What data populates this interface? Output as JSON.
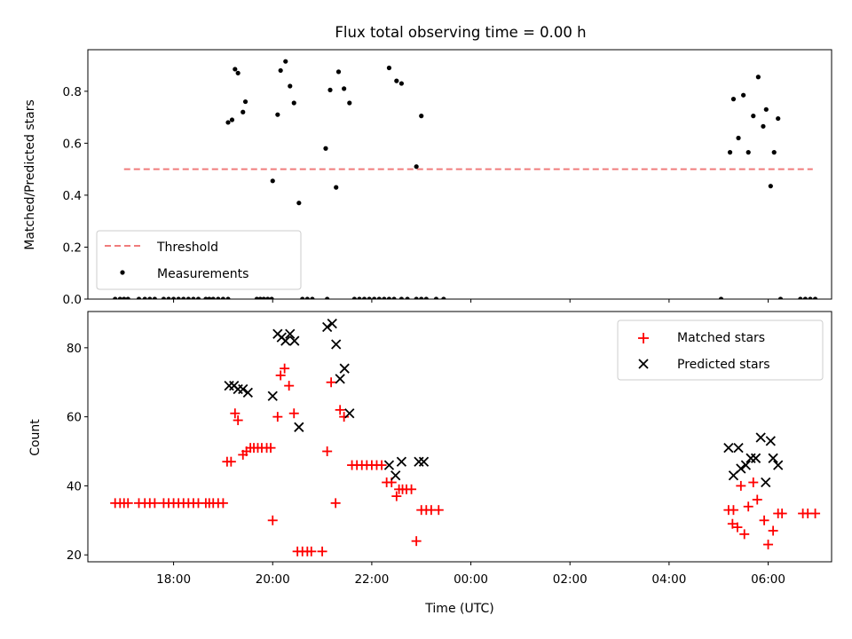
{
  "title": "Flux total observing time = 0.00 h",
  "chart_data": [
    {
      "type": "scatter",
      "ylabel": "Matched/Predicted stars",
      "xlabel": "",
      "xlim": [
        16.27,
        31.28
      ],
      "ylim": [
        0,
        0.96
      ],
      "yticks": [
        0.0,
        0.2,
        0.4,
        0.6,
        0.8
      ],
      "ytick_labels": [
        "0.0",
        "0.2",
        "0.4",
        "0.6",
        "0.8"
      ],
      "xticks": [
        18,
        20,
        22,
        24,
        26,
        28,
        30
      ],
      "legend_position": "lower-left",
      "threshold": {
        "name": "Threshold",
        "value": 0.5,
        "x_range": [
          17.0,
          30.9
        ],
        "color": "#f07c7c"
      },
      "series": [
        {
          "name": "Measurements",
          "color": "#000000",
          "points": [
            [
              19.1,
              0.68
            ],
            [
              19.18,
              0.69
            ],
            [
              19.24,
              0.885
            ],
            [
              19.3,
              0.87
            ],
            [
              19.4,
              0.72
            ],
            [
              19.45,
              0.76
            ],
            [
              20.0,
              0.455
            ],
            [
              20.1,
              0.71
            ],
            [
              20.16,
              0.88
            ],
            [
              20.26,
              0.915
            ],
            [
              20.35,
              0.82
            ],
            [
              20.43,
              0.755
            ],
            [
              20.53,
              0.37
            ],
            [
              21.07,
              0.58
            ],
            [
              21.16,
              0.805
            ],
            [
              21.28,
              0.43
            ],
            [
              21.33,
              0.875
            ],
            [
              21.44,
              0.81
            ],
            [
              21.55,
              0.755
            ],
            [
              22.35,
              0.89
            ],
            [
              22.5,
              0.84
            ],
            [
              22.6,
              0.83
            ],
            [
              22.9,
              0.51
            ],
            [
              23.0,
              0.705
            ],
            [
              29.23,
              0.565
            ],
            [
              29.3,
              0.77
            ],
            [
              29.4,
              0.62
            ],
            [
              29.5,
              0.785
            ],
            [
              29.6,
              0.565
            ],
            [
              29.7,
              0.705
            ],
            [
              29.8,
              0.855
            ],
            [
              29.9,
              0.665
            ],
            [
              29.96,
              0.73
            ],
            [
              30.05,
              0.435
            ],
            [
              30.12,
              0.565
            ],
            [
              30.2,
              0.695
            ],
            [
              16.82,
              0.0
            ],
            [
              16.92,
              0.0
            ],
            [
              17.0,
              0.0
            ],
            [
              17.08,
              0.0
            ],
            [
              17.3,
              0.0
            ],
            [
              17.42,
              0.0
            ],
            [
              17.52,
              0.0
            ],
            [
              17.62,
              0.0
            ],
            [
              17.8,
              0.0
            ],
            [
              17.9,
              0.0
            ],
            [
              18.0,
              0.0
            ],
            [
              18.1,
              0.0
            ],
            [
              18.2,
              0.0
            ],
            [
              18.3,
              0.0
            ],
            [
              18.4,
              0.0
            ],
            [
              18.5,
              0.0
            ],
            [
              18.65,
              0.0
            ],
            [
              18.72,
              0.0
            ],
            [
              18.8,
              0.0
            ],
            [
              18.9,
              0.0
            ],
            [
              19.0,
              0.0
            ],
            [
              19.1,
              0.0
            ],
            [
              19.68,
              0.0
            ],
            [
              19.75,
              0.0
            ],
            [
              19.82,
              0.0
            ],
            [
              19.9,
              0.0
            ],
            [
              19.98,
              0.0
            ],
            [
              20.6,
              0.0
            ],
            [
              20.7,
              0.0
            ],
            [
              20.8,
              0.0
            ],
            [
              21.1,
              0.0
            ],
            [
              21.65,
              0.0
            ],
            [
              21.75,
              0.0
            ],
            [
              21.85,
              0.0
            ],
            [
              21.95,
              0.0
            ],
            [
              22.05,
              0.0
            ],
            [
              22.15,
              0.0
            ],
            [
              22.25,
              0.0
            ],
            [
              22.35,
              0.0
            ],
            [
              22.45,
              0.0
            ],
            [
              22.6,
              0.0
            ],
            [
              22.72,
              0.0
            ],
            [
              22.9,
              0.0
            ],
            [
              23.0,
              0.0
            ],
            [
              23.1,
              0.0
            ],
            [
              23.3,
              0.0
            ],
            [
              23.45,
              0.0
            ],
            [
              29.05,
              0.0
            ],
            [
              30.25,
              0.0
            ],
            [
              30.65,
              0.0
            ],
            [
              30.75,
              0.0
            ],
            [
              30.85,
              0.0
            ],
            [
              30.95,
              0.0
            ]
          ]
        }
      ]
    },
    {
      "type": "scatter",
      "ylabel": "Count",
      "xlabel": "Time (UTC)",
      "xlim": [
        16.27,
        31.28
      ],
      "ylim": [
        18,
        90.5
      ],
      "yticks": [
        20,
        40,
        60,
        80
      ],
      "ytick_labels": [
        "20",
        "40",
        "60",
        "80"
      ],
      "xticks": [
        18,
        20,
        22,
        24,
        26,
        28,
        30
      ],
      "xtick_labels": [
        "18:00",
        "20:00",
        "22:00",
        "00:00",
        "02:00",
        "04:00",
        "06:00"
      ],
      "legend_position": "upper-right",
      "series": [
        {
          "name": "Matched stars",
          "color": "#ff0000",
          "marker": "plus",
          "points": [
            [
              16.82,
              35
            ],
            [
              16.92,
              35
            ],
            [
              17.0,
              35
            ],
            [
              17.08,
              35
            ],
            [
              17.3,
              35
            ],
            [
              17.42,
              35
            ],
            [
              17.52,
              35
            ],
            [
              17.62,
              35
            ],
            [
              17.8,
              35
            ],
            [
              17.9,
              35
            ],
            [
              18.0,
              35
            ],
            [
              18.1,
              35
            ],
            [
              18.2,
              35
            ],
            [
              18.3,
              35
            ],
            [
              18.4,
              35
            ],
            [
              18.5,
              35
            ],
            [
              18.65,
              35
            ],
            [
              18.72,
              35
            ],
            [
              18.8,
              35
            ],
            [
              18.9,
              35
            ],
            [
              19.0,
              35
            ],
            [
              19.08,
              47
            ],
            [
              19.16,
              47
            ],
            [
              19.24,
              61
            ],
            [
              19.3,
              59
            ],
            [
              19.4,
              49
            ],
            [
              19.47,
              50
            ],
            [
              19.55,
              51
            ],
            [
              19.62,
              51
            ],
            [
              19.7,
              51
            ],
            [
              19.78,
              51
            ],
            [
              19.88,
              51
            ],
            [
              19.96,
              51
            ],
            [
              20.0,
              30
            ],
            [
              20.1,
              60
            ],
            [
              20.16,
              72
            ],
            [
              20.24,
              74
            ],
            [
              20.33,
              69
            ],
            [
              20.43,
              61
            ],
            [
              20.5,
              21
            ],
            [
              20.6,
              21
            ],
            [
              20.7,
              21
            ],
            [
              20.78,
              21
            ],
            [
              21.0,
              21
            ],
            [
              21.1,
              50
            ],
            [
              21.18,
              70
            ],
            [
              21.27,
              35
            ],
            [
              21.36,
              62
            ],
            [
              21.44,
              60
            ],
            [
              21.6,
              46
            ],
            [
              21.7,
              46
            ],
            [
              21.8,
              46
            ],
            [
              21.9,
              46
            ],
            [
              22.0,
              46
            ],
            [
              22.1,
              46
            ],
            [
              22.2,
              46
            ],
            [
              22.3,
              41
            ],
            [
              22.4,
              41
            ],
            [
              22.5,
              37
            ],
            [
              22.55,
              39
            ],
            [
              22.62,
              39
            ],
            [
              22.7,
              39
            ],
            [
              22.8,
              39
            ],
            [
              22.9,
              24
            ],
            [
              23.0,
              33
            ],
            [
              23.1,
              33
            ],
            [
              23.2,
              33
            ],
            [
              23.35,
              33
            ],
            [
              29.2,
              33
            ],
            [
              29.3,
              33
            ],
            [
              29.28,
              29
            ],
            [
              29.38,
              28
            ],
            [
              29.45,
              40
            ],
            [
              29.52,
              26
            ],
            [
              29.6,
              34
            ],
            [
              29.7,
              41
            ],
            [
              29.78,
              36
            ],
            [
              29.92,
              30
            ],
            [
              30.0,
              23
            ],
            [
              30.1,
              27
            ],
            [
              30.2,
              32
            ],
            [
              30.28,
              32
            ],
            [
              30.7,
              32
            ],
            [
              30.8,
              32
            ],
            [
              30.95,
              32
            ]
          ]
        },
        {
          "name": "Predicted stars",
          "color": "#000000",
          "marker": "x",
          "points": [
            [
              19.12,
              69
            ],
            [
              19.22,
              69
            ],
            [
              19.3,
              68
            ],
            [
              19.4,
              68
            ],
            [
              19.5,
              67
            ],
            [
              20.0,
              66
            ],
            [
              20.1,
              84
            ],
            [
              20.18,
              83
            ],
            [
              20.26,
              82
            ],
            [
              20.35,
              84
            ],
            [
              20.44,
              82
            ],
            [
              20.53,
              57
            ],
            [
              21.1,
              86
            ],
            [
              21.2,
              87
            ],
            [
              21.28,
              81
            ],
            [
              21.36,
              71
            ],
            [
              21.45,
              74
            ],
            [
              21.55,
              61
            ],
            [
              22.35,
              46
            ],
            [
              22.48,
              43
            ],
            [
              22.6,
              47
            ],
            [
              22.95,
              47
            ],
            [
              23.05,
              47
            ],
            [
              29.2,
              51
            ],
            [
              29.3,
              43
            ],
            [
              29.4,
              51
            ],
            [
              29.45,
              45
            ],
            [
              29.55,
              46
            ],
            [
              29.65,
              48
            ],
            [
              29.75,
              48
            ],
            [
              29.85,
              54
            ],
            [
              29.95,
              41
            ],
            [
              30.05,
              53
            ],
            [
              30.1,
              48
            ],
            [
              30.2,
              46
            ]
          ]
        }
      ]
    }
  ]
}
